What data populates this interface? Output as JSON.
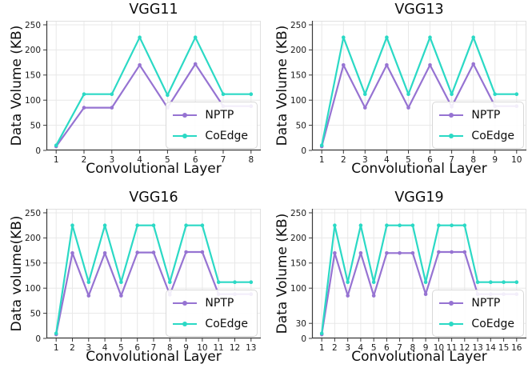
{
  "figure": {
    "background": "#ffffff",
    "description": "2x2 grid of line charts comparing per-layer transmitted data volume of NPTP and CoEdge on VGG networks"
  },
  "colors": {
    "nptp": "#9673D2",
    "coedge": "#2BD9C5",
    "grid": "#e8e8e8",
    "spine": "#3a3a3a",
    "spine_light": "#e0e0e0",
    "text": "#1a1a1a"
  },
  "chart_data": [
    {
      "type": "line",
      "title": "VGG11",
      "xlabel": "Convolutional Layer",
      "ylabel": "Data Volume (KB)",
      "x": [
        1,
        2,
        3,
        4,
        5,
        6,
        7,
        8
      ],
      "yticks": [
        0,
        50,
        100,
        150,
        200,
        250
      ],
      "ylim": [
        0,
        258
      ],
      "grid": true,
      "legend_position": "lower right",
      "series": [
        {
          "name": "NPTP",
          "color": "#9673D2",
          "values": [
            8,
            85,
            85,
            170,
            85,
            172,
            88,
            88
          ]
        },
        {
          "name": "CoEdge",
          "color": "#2BD9C5",
          "values": [
            10,
            112,
            112,
            225,
            110,
            225,
            112,
            112
          ]
        }
      ]
    },
    {
      "type": "line",
      "title": "VGG13",
      "xlabel": "Convolutional Layer",
      "ylabel": "Data Volume (KB)",
      "x": [
        1,
        2,
        3,
        4,
        5,
        6,
        7,
        8,
        9,
        10
      ],
      "yticks": [
        0,
        50,
        100,
        150,
        200,
        250
      ],
      "ylim": [
        0,
        258
      ],
      "grid": true,
      "legend_position": "lower right",
      "series": [
        {
          "name": "NPTP",
          "color": "#9673D2",
          "values": [
            8,
            170,
            85,
            170,
            85,
            170,
            87,
            172,
            88,
            88
          ]
        },
        {
          "name": "CoEdge",
          "color": "#2BD9C5",
          "values": [
            10,
            225,
            112,
            225,
            112,
            225,
            112,
            225,
            112,
            112
          ]
        }
      ]
    },
    {
      "type": "line",
      "title": "VGG16",
      "xlabel": "Convolutional Layer",
      "ylabel": "Data volume(KB)",
      "x": [
        1,
        2,
        3,
        4,
        5,
        6,
        7,
        8,
        9,
        10,
        11,
        12,
        13
      ],
      "yticks": [
        0,
        50,
        100,
        150,
        200,
        250
      ],
      "ylim": [
        0,
        258
      ],
      "grid": true,
      "legend_position": "lower right",
      "series": [
        {
          "name": "NPTP",
          "color": "#9673D2",
          "values": [
            8,
            170,
            85,
            170,
            85,
            171,
            171,
            87,
            172,
            172,
            88,
            88,
            88
          ]
        },
        {
          "name": "CoEdge",
          "color": "#2BD9C5",
          "values": [
            10,
            225,
            112,
            225,
            112,
            225,
            225,
            112,
            225,
            225,
            112,
            112,
            112
          ]
        }
      ]
    },
    {
      "type": "line",
      "title": "VGG19",
      "xlabel": "Convolutional Layer",
      "ylabel": "Data Volume (KB)",
      "x": [
        1,
        2,
        3,
        4,
        5,
        6,
        7,
        8,
        9,
        10,
        11,
        12,
        13,
        14,
        15,
        16
      ],
      "yticks": [
        0,
        30,
        100,
        150,
        200,
        250
      ],
      "ylim": [
        0,
        258
      ],
      "grid": true,
      "legend_position": "lower right",
      "series": [
        {
          "name": "NPTP",
          "color": "#9673D2",
          "values": [
            8,
            170,
            85,
            170,
            85,
            170,
            170,
            170,
            88,
            172,
            172,
            172,
            88,
            88,
            88,
            88
          ]
        },
        {
          "name": "CoEdge",
          "color": "#2BD9C5",
          "values": [
            10,
            225,
            112,
            225,
            112,
            225,
            225,
            225,
            112,
            225,
            225,
            225,
            112,
            112,
            112,
            112
          ]
        }
      ]
    }
  ]
}
